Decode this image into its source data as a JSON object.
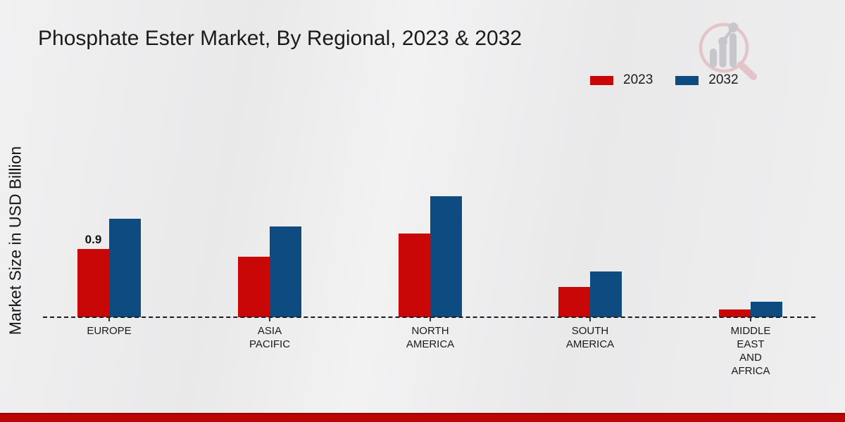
{
  "title": "Phosphate Ester Market, By Regional, 2023 & 2032",
  "legend": {
    "items": [
      {
        "label": "2023",
        "color": "#c90707"
      },
      {
        "label": "2032",
        "color": "#0d4b80"
      }
    ]
  },
  "watermark": {
    "name": "market-research-magnifier-logo"
  },
  "footer": {
    "bar_color": "#bb0505"
  },
  "chart_data": {
    "type": "bar",
    "title": "Phosphate Ester Market, By Regional, 2023 & 2032",
    "ylabel": "Market Size in USD Billion",
    "xlabel": "",
    "categories": [
      "EUROPE",
      "ASIA\nPACIFIC",
      "NORTH\nAMERICA",
      "SOUTH\nAMERICA",
      "MIDDLE\nEAST\nAND\nAFRICA"
    ],
    "series": [
      {
        "name": "2023",
        "color": "#c90707",
        "values": [
          0.9,
          0.8,
          1.1,
          0.4,
          0.1
        ]
      },
      {
        "name": "2032",
        "color": "#0d4b80",
        "values": [
          1.3,
          1.2,
          1.6,
          0.6,
          0.2
        ]
      }
    ],
    "data_labels": [
      {
        "series": "2023",
        "category_index": 0,
        "text": "0.9"
      }
    ],
    "ylim": [
      0,
      1.8
    ],
    "grid": false,
    "baseline_style": "dashed",
    "legend_position": "top-right"
  }
}
